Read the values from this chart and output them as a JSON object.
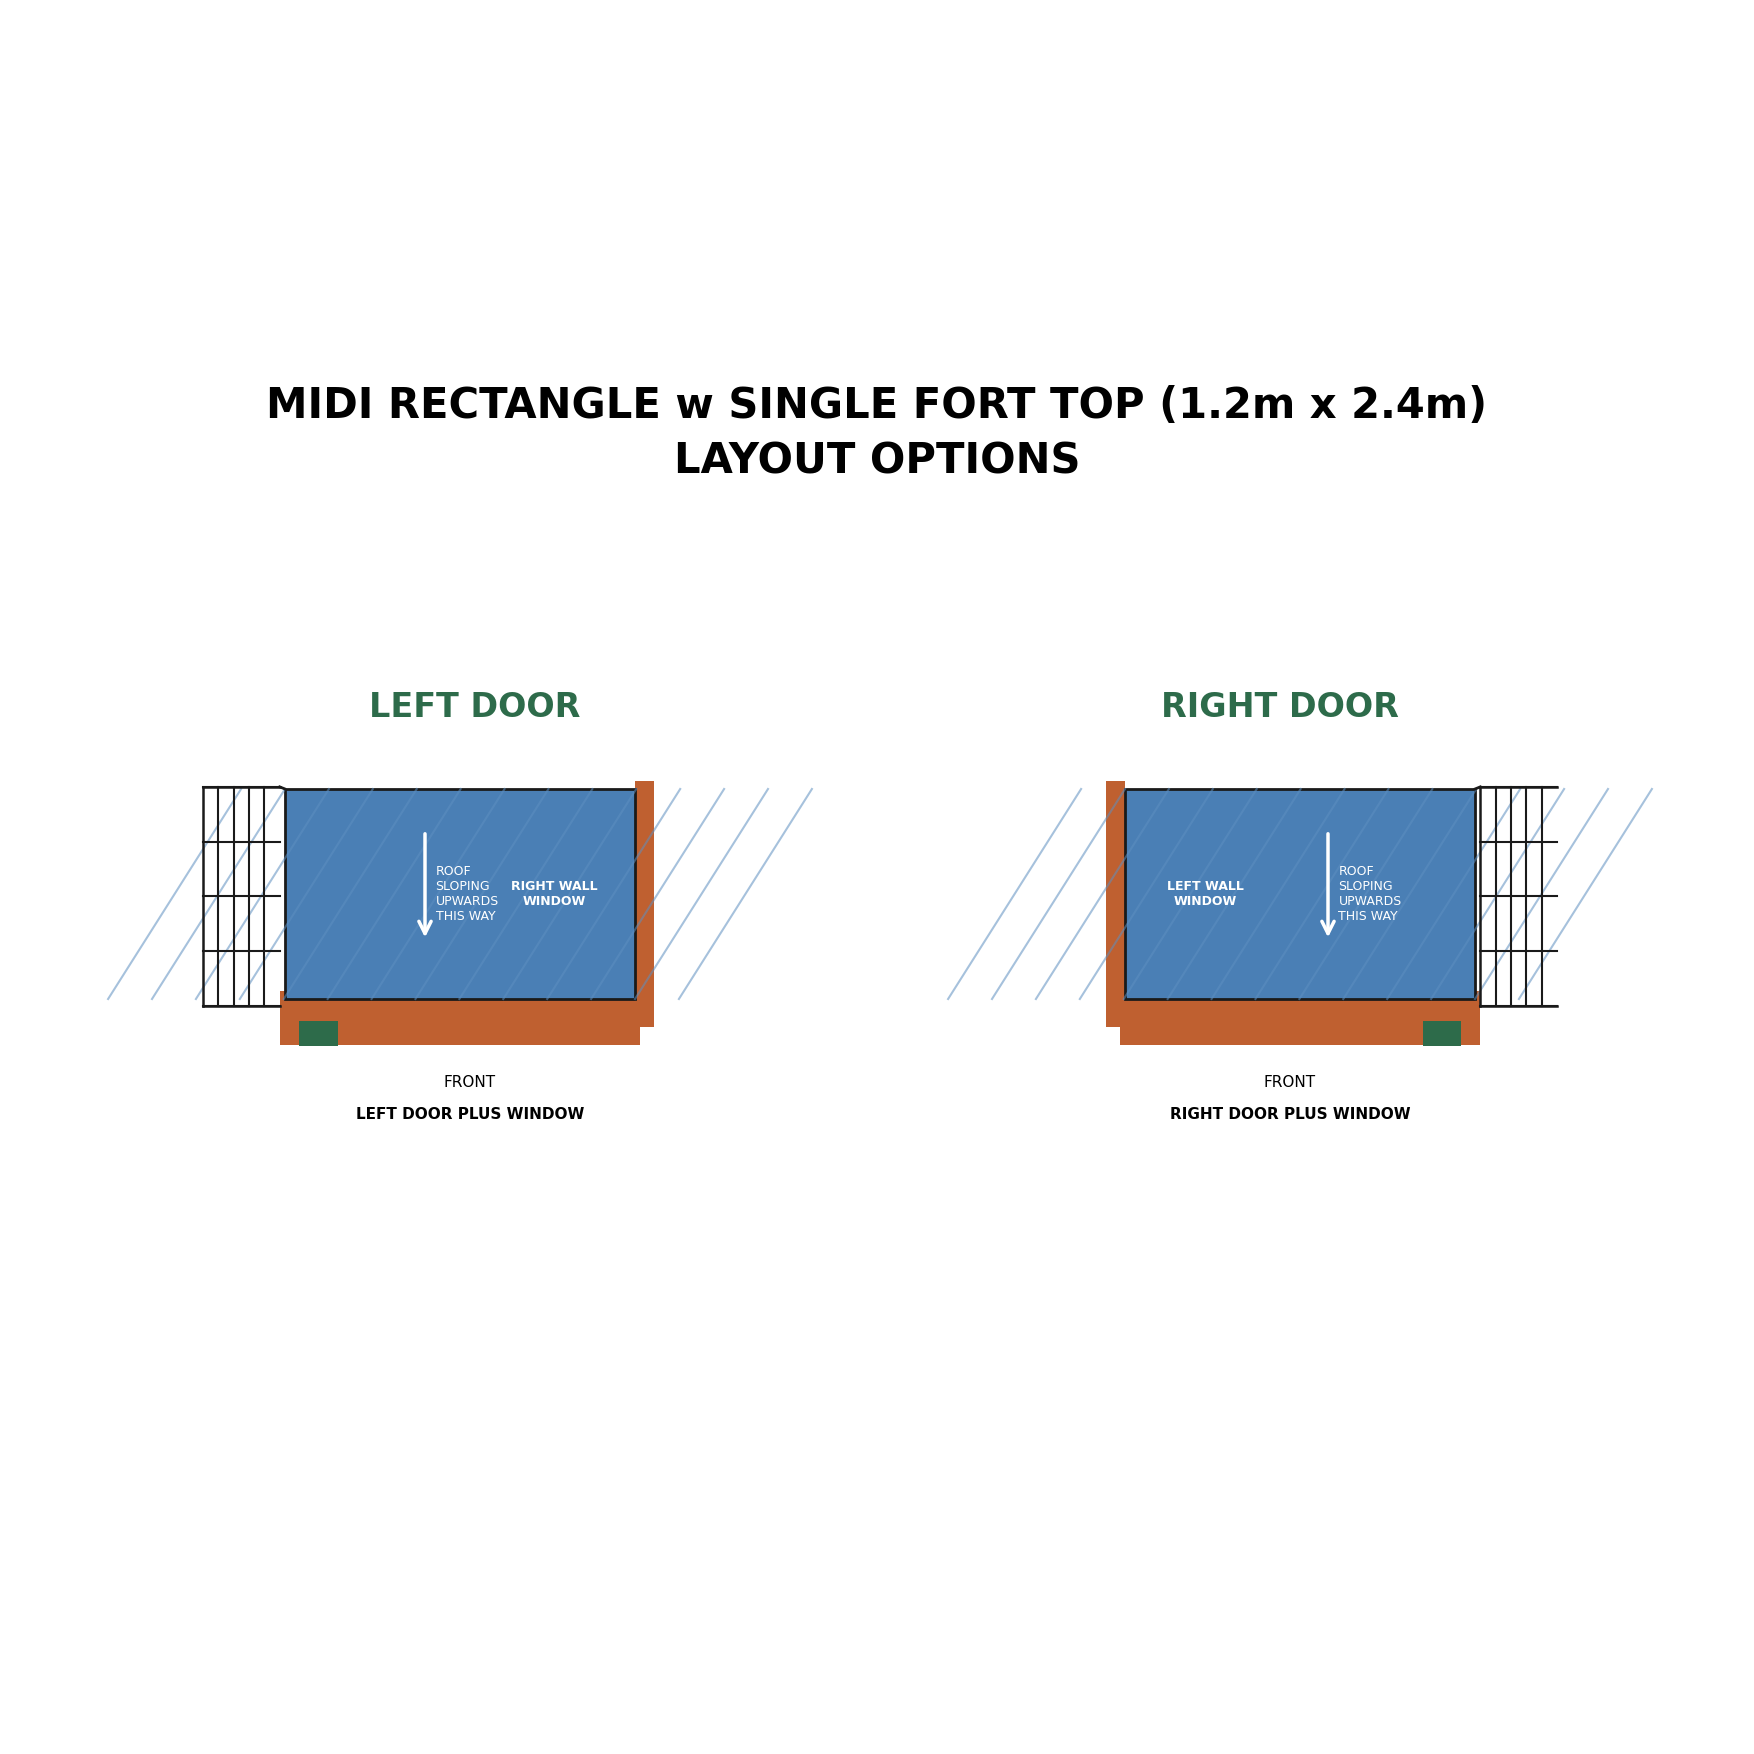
{
  "title_line1": "MIDI RECTANGLE w SINGLE FORT TOP (1.2m x 2.4m)",
  "title_line2": "LAYOUT OPTIONS",
  "title_fontsize": 30,
  "title_fontweight": "bold",
  "background_color": "#ffffff",
  "blue_color": "#4a7fb5",
  "orange_color": "#bf6030",
  "green_color": "#2d6b4a",
  "dark_outline": "#1a1a1a",
  "hatch_line_color": "#5d8fc0",
  "label_left_door": "LEFT DOOR",
  "label_right_door": "RIGHT DOOR",
  "label_roof_sloping": "ROOF\nSLOPING\nUPWARDS\nTHIS WAY",
  "label_right_wall_window": "RIGHT WALL\nWINDOW",
  "label_left_wall_window": "LEFT WALL\nWINDOW",
  "door_label_fontsize": 24,
  "inner_label_fontsize": 9,
  "front_label_fontsize": 11
}
